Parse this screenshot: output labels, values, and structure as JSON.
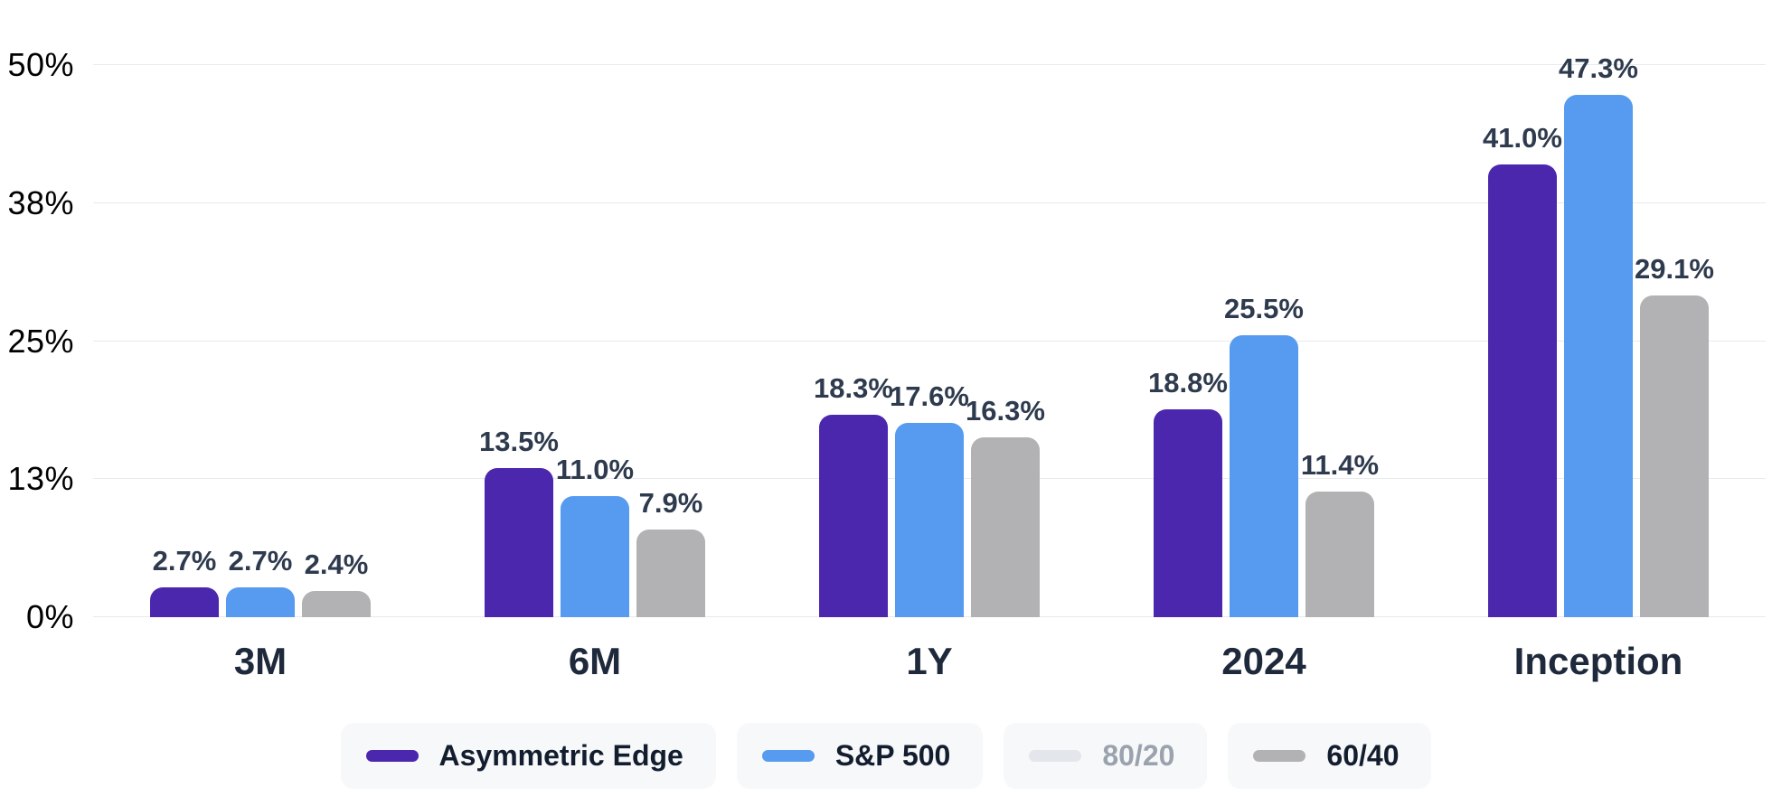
{
  "chart_data": {
    "type": "bar",
    "categories": [
      "3M",
      "6M",
      "1Y",
      "2024",
      "Inception"
    ],
    "series": [
      {
        "name": "Asymmetric Edge",
        "color": "#4b27ae",
        "visible": true,
        "legend_active": true,
        "values": [
          2.7,
          13.5,
          18.3,
          18.8,
          41.0
        ],
        "value_labels": [
          "2.7%",
          "13.5%",
          "18.3%",
          "18.8%",
          "41.0%"
        ]
      },
      {
        "name": "S&P 500",
        "color": "#579bf0",
        "visible": true,
        "legend_active": true,
        "values": [
          2.7,
          11.0,
          17.6,
          25.5,
          47.3
        ],
        "value_labels": [
          "2.7%",
          "11.0%",
          "17.6%",
          "25.5%",
          "47.3%"
        ]
      },
      {
        "name": "80/20",
        "color": "#e3e6eb",
        "visible": false,
        "legend_active": false,
        "values": null,
        "value_labels": null
      },
      {
        "name": "60/40",
        "color": "#b2b2b4",
        "visible": true,
        "legend_active": true,
        "values": [
          2.4,
          7.9,
          16.3,
          11.4,
          29.1
        ],
        "value_labels": [
          "2.4%",
          "7.9%",
          "16.3%",
          "11.4%",
          "29.1%"
        ]
      }
    ],
    "y_ticks": [
      {
        "value": 0,
        "label": "0%"
      },
      {
        "value": 12.5,
        "label": "13%"
      },
      {
        "value": 25,
        "label": "25%"
      },
      {
        "value": 37.5,
        "label": "38%"
      },
      {
        "value": 50,
        "label": "50%"
      }
    ],
    "ylim": [
      0,
      50
    ],
    "grid": true,
    "legend_position": "bottom"
  },
  "colors": {
    "value_label": "#2e3a4d",
    "category_label": "#1e2a3b",
    "y_axis_label": "#687385",
    "gridline": "#e8eaee",
    "legend_background": "#f7f8fa",
    "legend_text": "#121d2e",
    "legend_text_muted": "#9aa2ad"
  }
}
